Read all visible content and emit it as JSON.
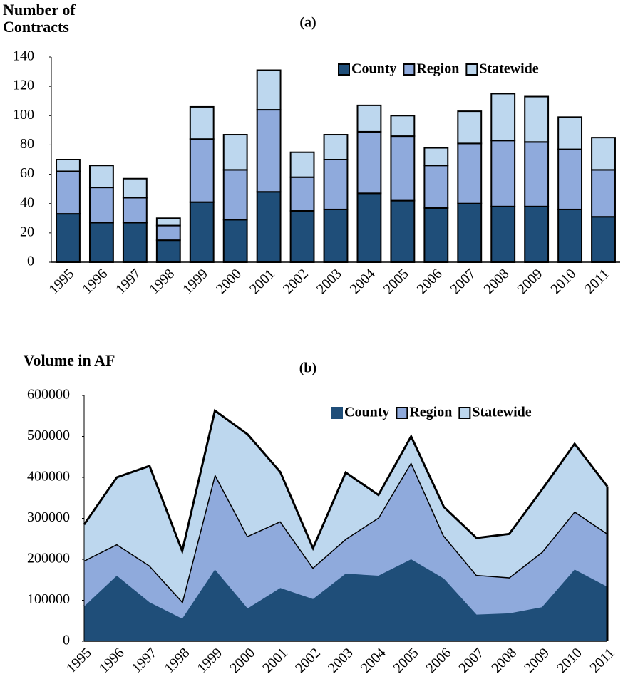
{
  "chart_data": [
    {
      "type": "bar",
      "stacked": true,
      "title": "(a)",
      "y_label": "Number of Contracts",
      "categories": [
        "1995",
        "1996",
        "1997",
        "1998",
        "1999",
        "2000",
        "2001",
        "2002",
        "2003",
        "2004",
        "2005",
        "2006",
        "2007",
        "2008",
        "2009",
        "2010",
        "2011"
      ],
      "series": [
        {
          "name": "County",
          "color": "#1f4e79",
          "values": [
            33,
            27,
            27,
            15,
            41,
            29,
            48,
            35,
            36,
            47,
            42,
            37,
            40,
            38,
            38,
            36,
            31
          ]
        },
        {
          "name": "Region",
          "color": "#8faadc",
          "values": [
            29,
            24,
            17,
            10,
            43,
            34,
            56,
            23,
            34,
            42,
            44,
            29,
            41,
            45,
            44,
            41,
            32
          ]
        },
        {
          "name": "Statewide",
          "color": "#bdd7ee",
          "values": [
            8,
            15,
            13,
            5,
            22,
            24,
            27,
            17,
            17,
            18,
            14,
            12,
            22,
            32,
            31,
            22,
            22
          ]
        }
      ],
      "ylim": [
        0,
        140
      ],
      "yticks": [
        0,
        20,
        40,
        60,
        80,
        100,
        120,
        140
      ],
      "grid": false,
      "legend": "top-right"
    },
    {
      "type": "area",
      "stacked": true,
      "title": "(b)",
      "y_label": "Volume in AF",
      "categories": [
        "1995",
        "1996",
        "1997",
        "1998",
        "1999",
        "2000",
        "2001",
        "2002",
        "2003",
        "2004",
        "2005",
        "2006",
        "2007",
        "2008",
        "2009",
        "2010",
        "2011"
      ],
      "series": [
        {
          "name": "County",
          "color": "#1f4e79",
          "values": [
            85000,
            160000,
            95000,
            55000,
            175000,
            80000,
            130000,
            103000,
            165000,
            160000,
            200000,
            153000,
            65000,
            68000,
            83000,
            175000,
            133000
          ]
        },
        {
          "name": "Region",
          "color": "#8faadc",
          "values": [
            112000,
            77000,
            90000,
            42000,
            233000,
            177000,
            163000,
            77000,
            85000,
            142000,
            237000,
            105000,
            97000,
            88000,
            135000,
            142000,
            130000
          ]
        },
        {
          "name": "Statewide",
          "color": "#bdd7ee",
          "values": [
            88000,
            163000,
            243000,
            123000,
            155000,
            248000,
            120000,
            47000,
            162000,
            55000,
            63000,
            70000,
            90000,
            106000,
            152000,
            165000,
            115000
          ]
        }
      ],
      "ylim": [
        0,
        600000
      ],
      "yticks": [
        0,
        100000,
        200000,
        300000,
        400000,
        500000,
        600000
      ],
      "grid": false,
      "legend": "top-right"
    }
  ]
}
